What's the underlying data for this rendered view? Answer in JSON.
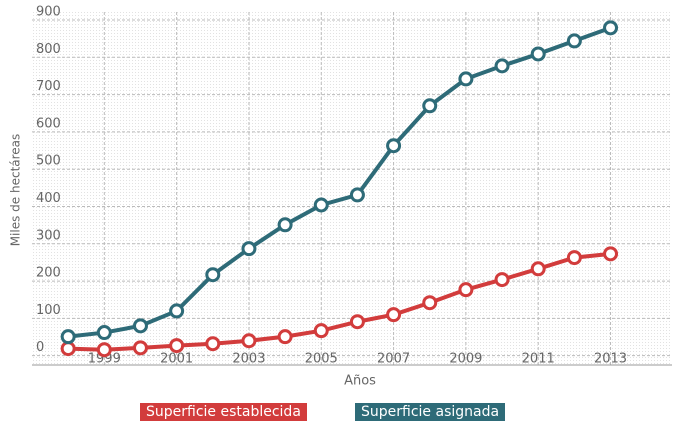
{
  "chart_data": {
    "type": "line",
    "x_label": "Años",
    "y_label": "Miles de hectáreas",
    "x": [
      1998,
      1999,
      2000,
      2001,
      2002,
      2003,
      2004,
      2005,
      2006,
      2007,
      2008,
      2009,
      2010,
      2011,
      2012,
      2013
    ],
    "series": [
      {
        "name": "Superficie establecida",
        "color": "#d23c3c",
        "values": [
          19,
          16,
          21,
          27,
          32,
          40,
          51,
          67,
          91,
          110,
          142,
          177,
          204,
          233,
          263,
          273
        ]
      },
      {
        "name": "Superficie asignada",
        "color": "#2e6b78",
        "values": [
          51,
          62,
          80,
          120,
          217,
          287,
          351,
          404,
          431,
          563,
          670,
          742,
          777,
          809,
          844,
          879
        ]
      }
    ],
    "xlim": [
      1997,
      2014.7
    ],
    "xticks": [
      1999,
      2001,
      2003,
      2005,
      2007,
      2009,
      2011,
      2013
    ],
    "ylim": [
      -25,
      900
    ],
    "yticks": [
      0,
      100,
      200,
      300,
      400,
      500,
      600,
      700,
      800,
      900
    ],
    "grid": true
  }
}
